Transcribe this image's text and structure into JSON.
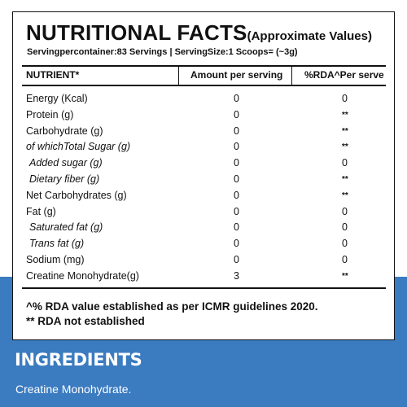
{
  "label": {
    "title_main": "NUTRITIONAL FACTS",
    "title_sub": "(Approximate Values)",
    "serving_info": "Servingpercontainer:83 Servings | ServingSize:1 Scoops= (~3g)",
    "columns": {
      "nutrient": "NUTRIENT*",
      "amount": "Amount per serving",
      "rda": "%RDA^Per serve"
    },
    "rows": [
      {
        "name": "Energy (Kcal)",
        "amount": "0",
        "rda": "0"
      },
      {
        "name": "Protein (g)",
        "amount": "0",
        "rda": "**"
      },
      {
        "name": "Carbohydrate (g)",
        "amount": "0",
        "rda": "**"
      },
      {
        "name": "of whichTotal Sugar (g)",
        "amount": "0",
        "rda": "**"
      },
      {
        "name": "Added sugar (g)",
        "amount": "0",
        "rda": "0"
      },
      {
        "name": "Dietary fiber (g)",
        "amount": "0",
        "rda": "**"
      },
      {
        "name": "Net Carbohydrates (g)",
        "amount": "0",
        "rda": "**"
      },
      {
        "name": "Fat (g)",
        "amount": "0",
        "rda": "0"
      },
      {
        "name": "Saturated fat (g)",
        "amount": "0",
        "rda": "0"
      },
      {
        "name": "Trans fat (g)",
        "amount": "0",
        "rda": "0"
      },
      {
        "name": "Sodium (mg)",
        "amount": "0",
        "rda": "0"
      },
      {
        "name": "Creatine Monohydrate(g)",
        "amount": "3",
        "rda": "**"
      }
    ],
    "footnote_rda": "^% RDA value established as per ICMR guidelines 2020.",
    "footnote_not_established": "** RDA not established"
  },
  "ingredients": {
    "title": "INGREDIENTS",
    "text": "Creatine Monohydrate."
  },
  "colors": {
    "band": "#3b7bc0",
    "text": "#111111"
  }
}
